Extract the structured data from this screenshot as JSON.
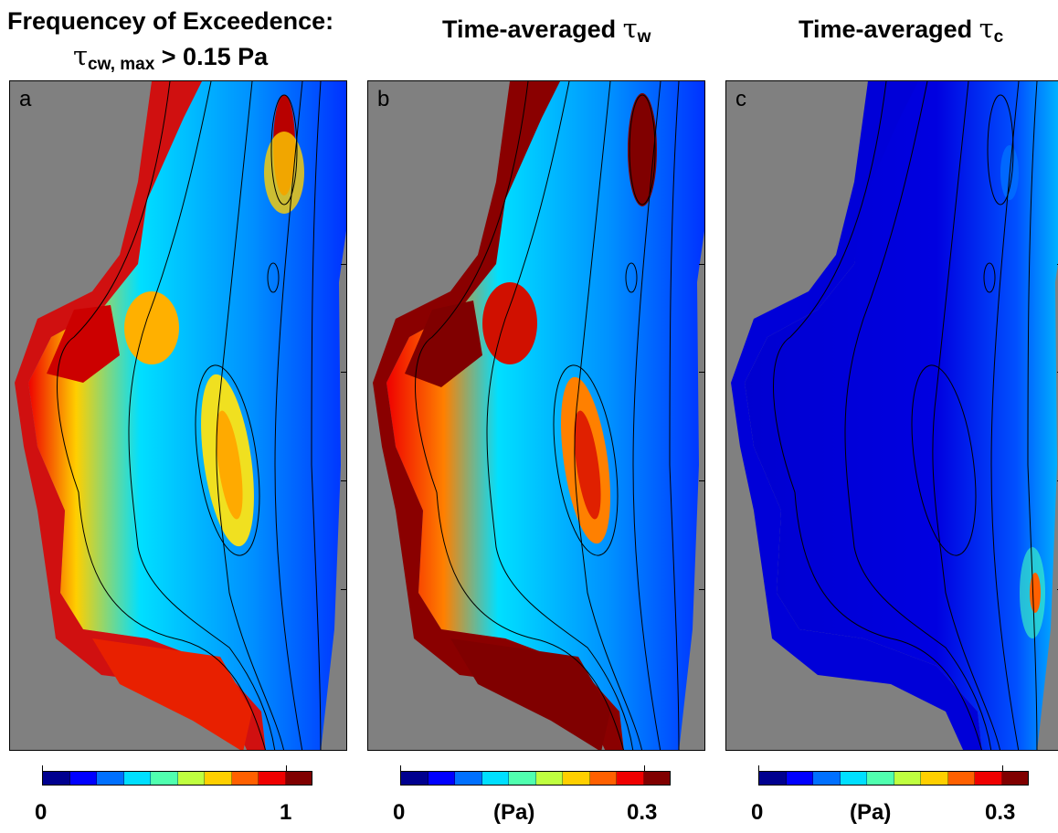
{
  "titles": {
    "a_line1": "Frequencey of Exceedence:",
    "a_tau": "τ",
    "a_sub": "cw, max",
    "a_rest": " > 0.15 Pa",
    "b_text": "Time-averaged ",
    "b_tau": "τ",
    "b_sub": "w",
    "c_text": "Time-averaged ",
    "c_tau": "τ",
    "c_sub": "c"
  },
  "panels": [
    {
      "label": "a"
    },
    {
      "label": "b"
    },
    {
      "label": "c"
    }
  ],
  "colorbars": [
    {
      "min_label": "0",
      "unit_label": "",
      "max_label": "1"
    },
    {
      "min_label": "0",
      "unit_label": "(Pa)",
      "max_label": "0.3"
    },
    {
      "min_label": "0",
      "unit_label": "(Pa)",
      "max_label": "0.3"
    }
  ],
  "colormap": [
    "#00008f",
    "#0000ff",
    "#0070ff",
    "#00dfff",
    "#50ffaf",
    "#bfff40",
    "#ffcf00",
    "#ff6000",
    "#ef0000",
    "#800000"
  ],
  "colors": {
    "land": "#808080",
    "background": "#ffffff"
  }
}
